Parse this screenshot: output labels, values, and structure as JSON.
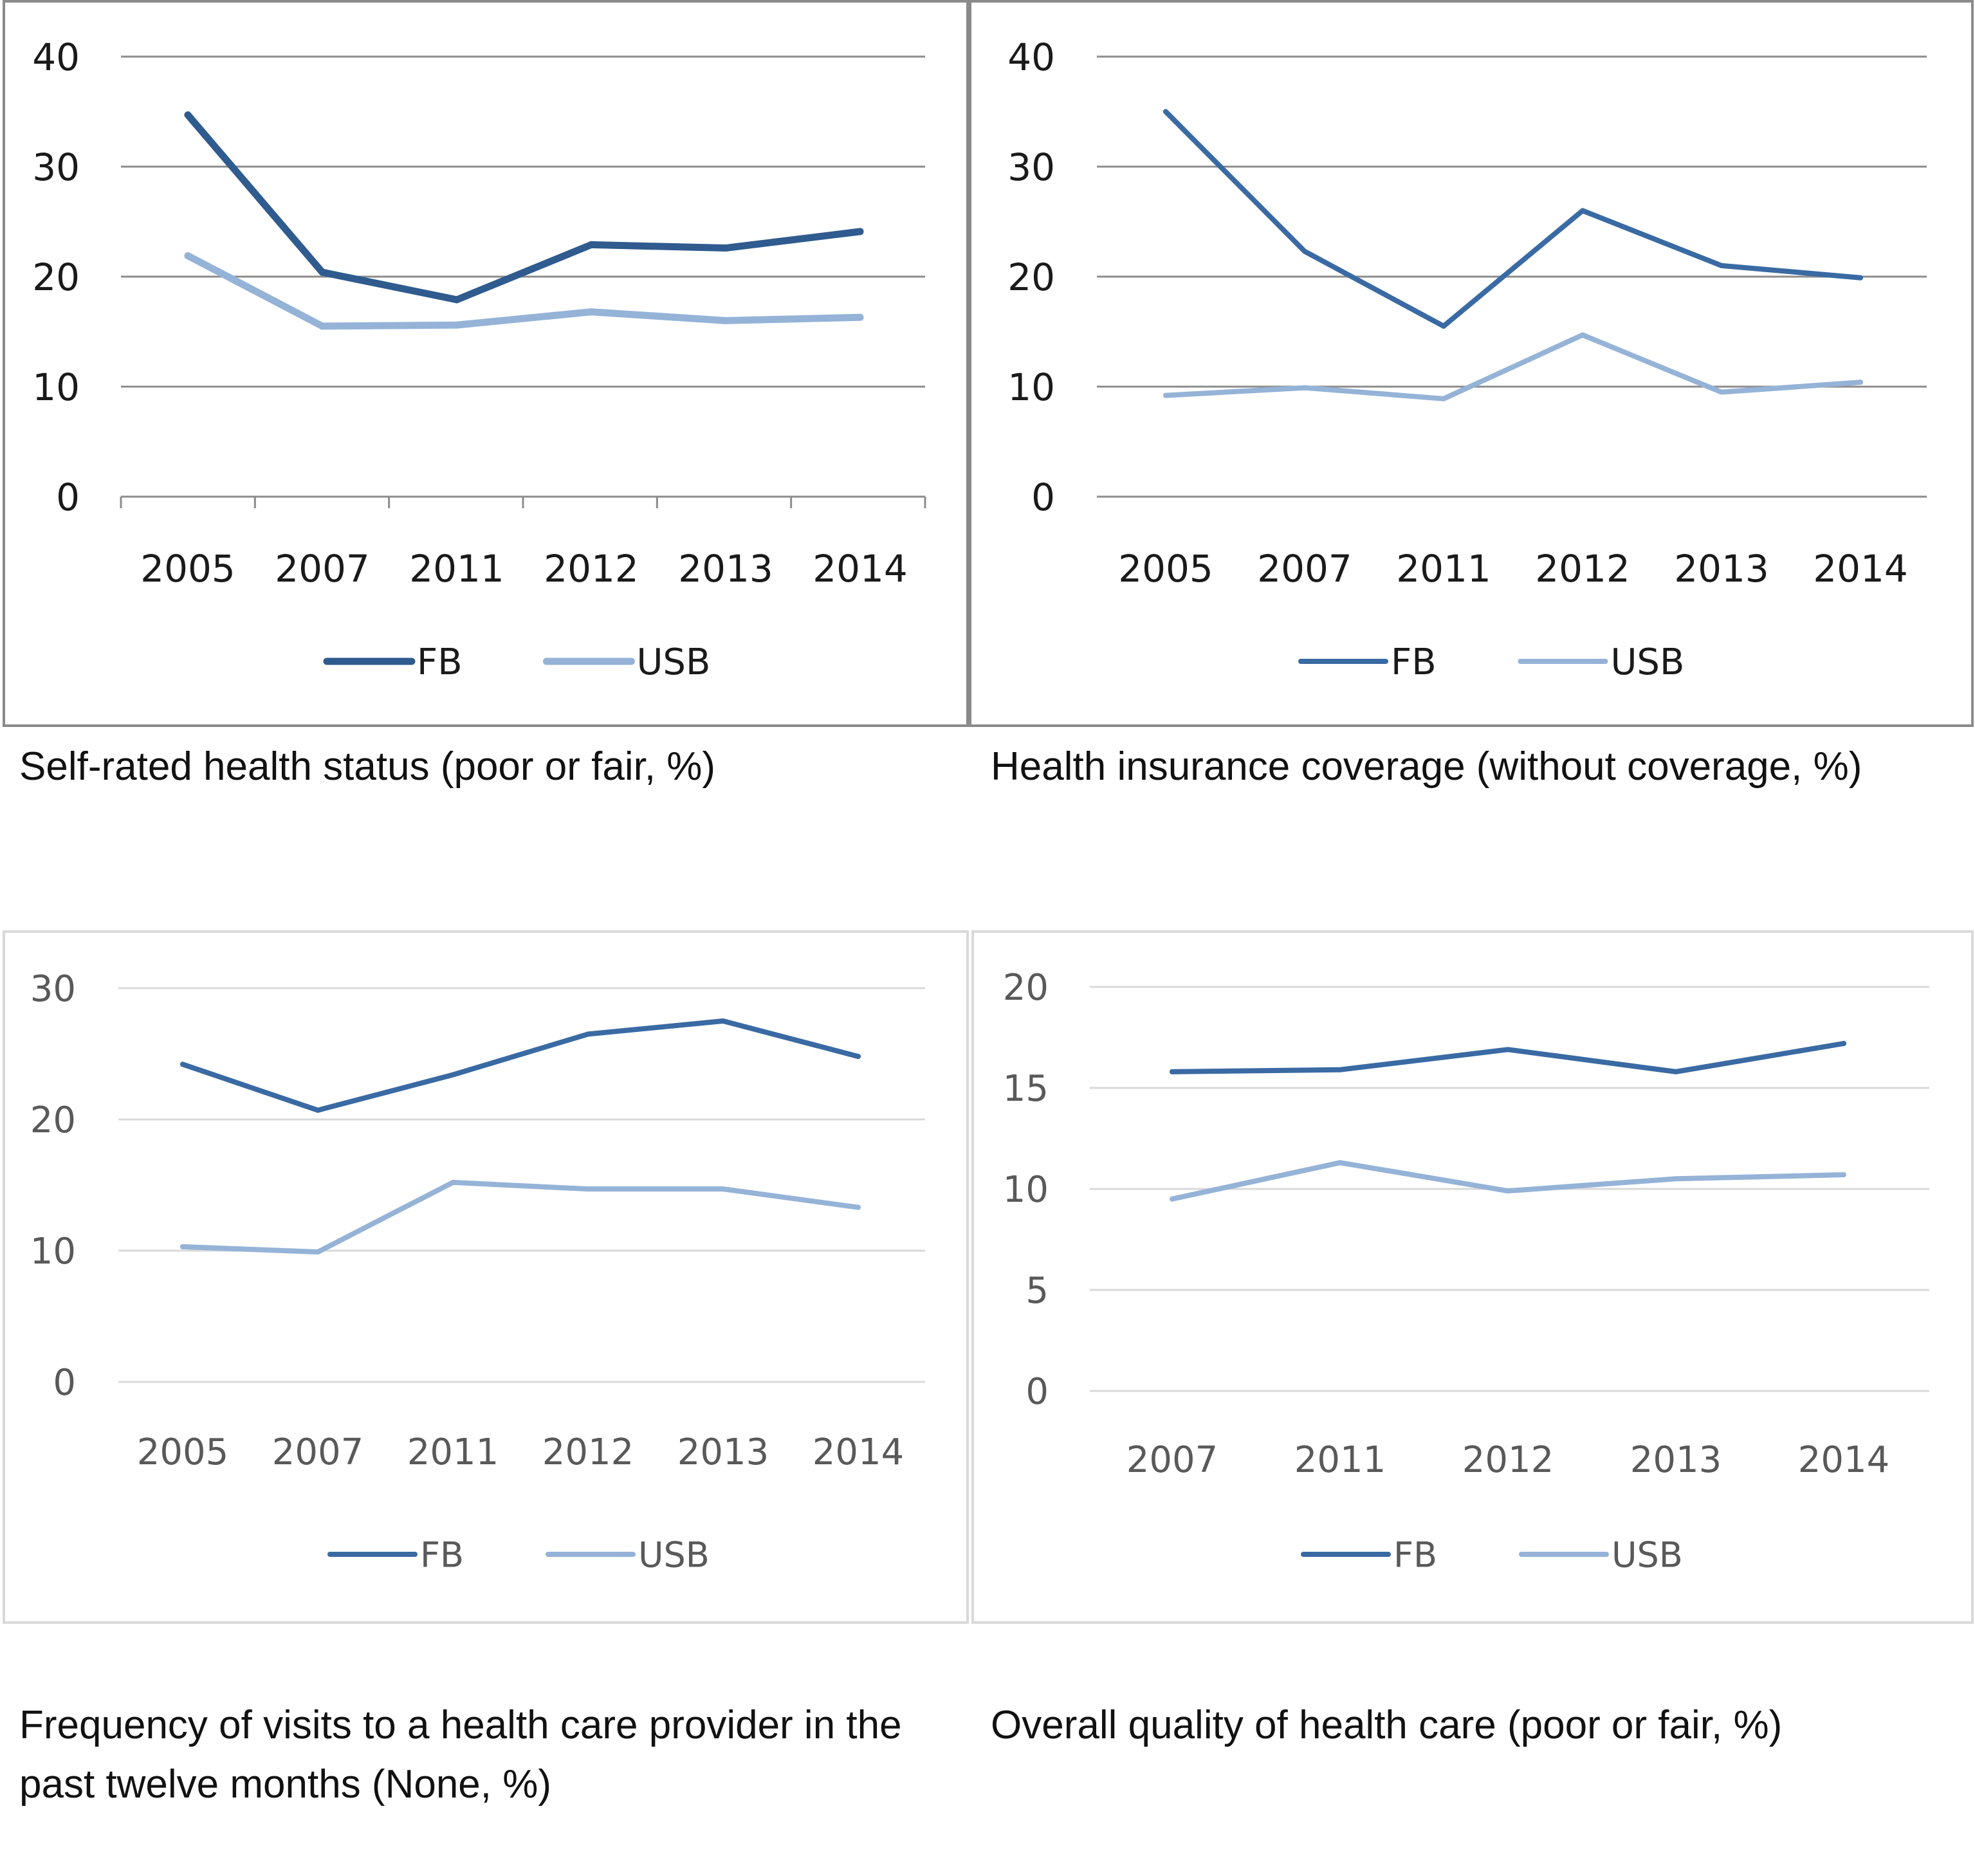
{
  "chart_data": [
    {
      "type": "line",
      "title": "",
      "caption": "Self-rated health status (poor or fair, %)",
      "categories": [
        "2005",
        "2007",
        "2011",
        "2012",
        "2013",
        "2014"
      ],
      "yticks": [
        "0",
        "10",
        "20",
        "30",
        "40"
      ],
      "ylim": [
        0,
        40
      ],
      "grid": true,
      "legend_position": "bottom",
      "series": [
        {
          "name": "FB",
          "color": "#2f5b8f",
          "values": [
            34.7,
            20.4,
            17.9,
            22.9,
            22.6,
            24.1
          ]
        },
        {
          "name": "USB",
          "color": "#95b3d7",
          "values": [
            21.9,
            15.5,
            15.6,
            16.8,
            16.0,
            16.3
          ]
        }
      ]
    },
    {
      "type": "line",
      "title": "",
      "caption": "Health insurance coverage (without coverage, %)",
      "categories": [
        "2005",
        "2007",
        "2011",
        "2012",
        "2013",
        "2014"
      ],
      "yticks": [
        "0",
        "10",
        "20",
        "30",
        "40"
      ],
      "ylim": [
        0,
        40
      ],
      "grid": true,
      "legend_position": "bottom",
      "series": [
        {
          "name": "FB",
          "color": "#3a6aa3",
          "values": [
            35.0,
            22.3,
            15.5,
            26.0,
            21.0,
            19.9
          ]
        },
        {
          "name": "USB",
          "color": "#95b3d7",
          "values": [
            9.2,
            9.9,
            8.9,
            14.7,
            9.5,
            10.4
          ]
        }
      ]
    },
    {
      "type": "line",
      "title": "",
      "caption": "Frequency of visits to a health care provider in the past twelve months (None, %)",
      "categories": [
        "2005",
        "2007",
        "2011",
        "2012",
        "2013",
        "2014"
      ],
      "yticks": [
        "0",
        "10",
        "20",
        "30"
      ],
      "ylim": [
        0,
        30
      ],
      "grid": true,
      "legend_position": "bottom",
      "series": [
        {
          "name": "FB",
          "color": "#3a6aa3",
          "values": [
            24.2,
            20.7,
            23.4,
            26.5,
            27.5,
            24.8
          ]
        },
        {
          "name": "USB",
          "color": "#95b3d7",
          "values": [
            10.3,
            9.9,
            15.2,
            14.7,
            14.7,
            13.3
          ]
        }
      ]
    },
    {
      "type": "line",
      "title": "",
      "caption": "Overall quality of health care (poor or fair, %)",
      "categories": [
        "2007",
        "2011",
        "2012",
        "2013",
        "2014"
      ],
      "yticks": [
        "0",
        "5",
        "10",
        "15",
        "20"
      ],
      "ylim": [
        0,
        20
      ],
      "grid": true,
      "legend_position": "bottom",
      "series": [
        {
          "name": "FB",
          "color": "#3a6aa3",
          "values": [
            15.8,
            15.9,
            16.9,
            15.8,
            17.2
          ]
        },
        {
          "name": "USB",
          "color": "#95b3d7",
          "values": [
            9.5,
            11.3,
            9.9,
            10.5,
            10.7
          ]
        }
      ]
    }
  ]
}
